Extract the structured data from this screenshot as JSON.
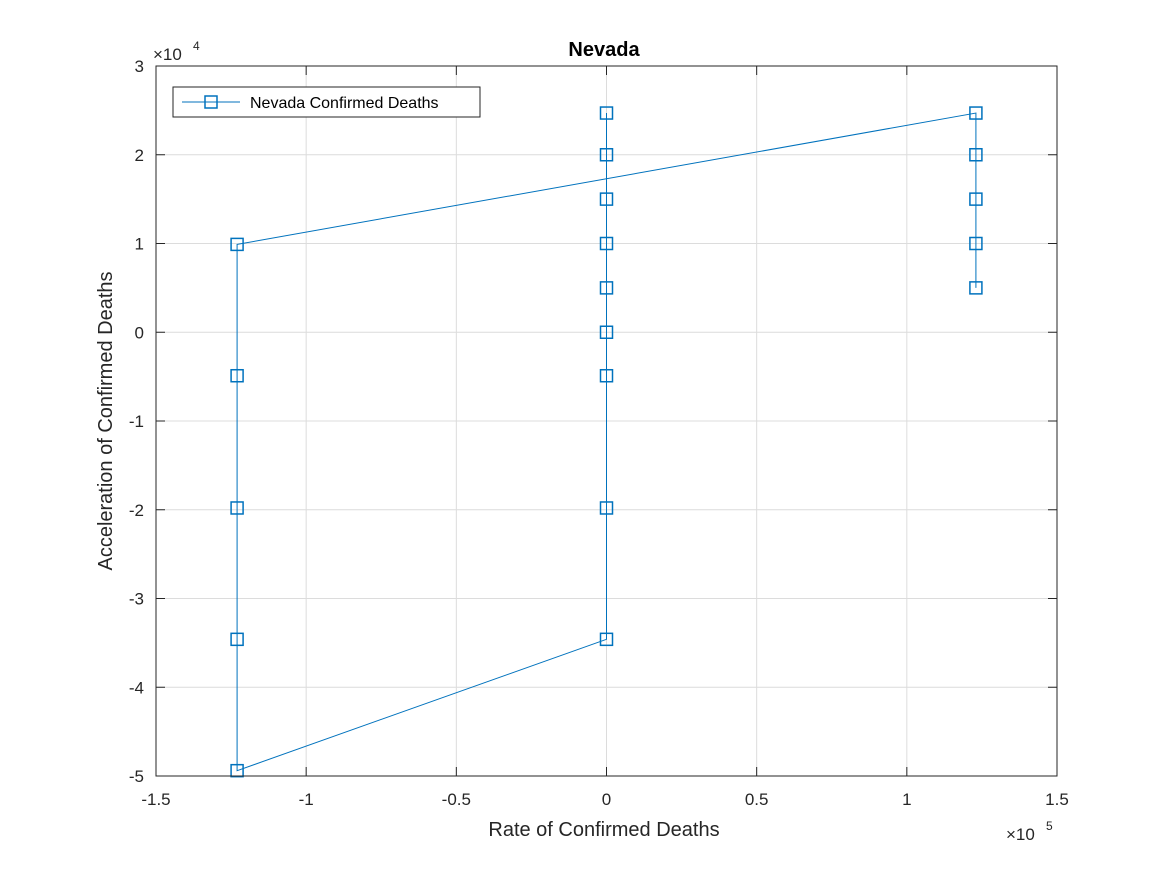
{
  "chart_data": {
    "type": "line",
    "title": "Nevada",
    "xlabel": "Rate of Confirmed Deaths",
    "ylabel": "Acceleration of Confirmed Deaths",
    "x_exponent": {
      "base": "×10",
      "power": "5"
    },
    "y_exponent": {
      "base": "×10",
      "power": "4"
    },
    "xlim": [
      -1.5,
      1.5
    ],
    "ylim": [
      -5,
      3
    ],
    "xticks": [
      -1.5,
      -1,
      -0.5,
      0,
      0.5,
      1,
      1.5
    ],
    "xtick_labels": [
      "-1.5",
      "-1",
      "-0.5",
      "0",
      "0.5",
      "1",
      "1.5"
    ],
    "yticks": [
      -5,
      -4,
      -3,
      -2,
      -1,
      0,
      1,
      2,
      3
    ],
    "ytick_labels": [
      "-5",
      "-4",
      "-3",
      "-2",
      "-1",
      "0",
      "1",
      "2",
      "3"
    ],
    "grid": true,
    "legend_position": "top-left",
    "series_color": "#0072BD",
    "series": [
      {
        "name": "Nevada Confirmed Deaths",
        "marker": "square",
        "points": [
          [
            1.23,
            0.5
          ],
          [
            1.23,
            1.0
          ],
          [
            1.23,
            1.5
          ],
          [
            1.23,
            2.0
          ],
          [
            1.23,
            2.47
          ],
          [
            -1.23,
            0.99
          ],
          [
            -1.23,
            -0.49
          ],
          [
            -1.23,
            -1.98
          ],
          [
            -1.23,
            -3.46
          ],
          [
            -1.23,
            -4.94
          ],
          [
            0,
            -3.46
          ],
          [
            0,
            -1.98
          ],
          [
            0,
            -0.49
          ],
          [
            0,
            0
          ],
          [
            0,
            0.5
          ],
          [
            0,
            1.0
          ],
          [
            0,
            1.5
          ],
          [
            0,
            2.0
          ],
          [
            0,
            2.47
          ]
        ]
      }
    ]
  }
}
